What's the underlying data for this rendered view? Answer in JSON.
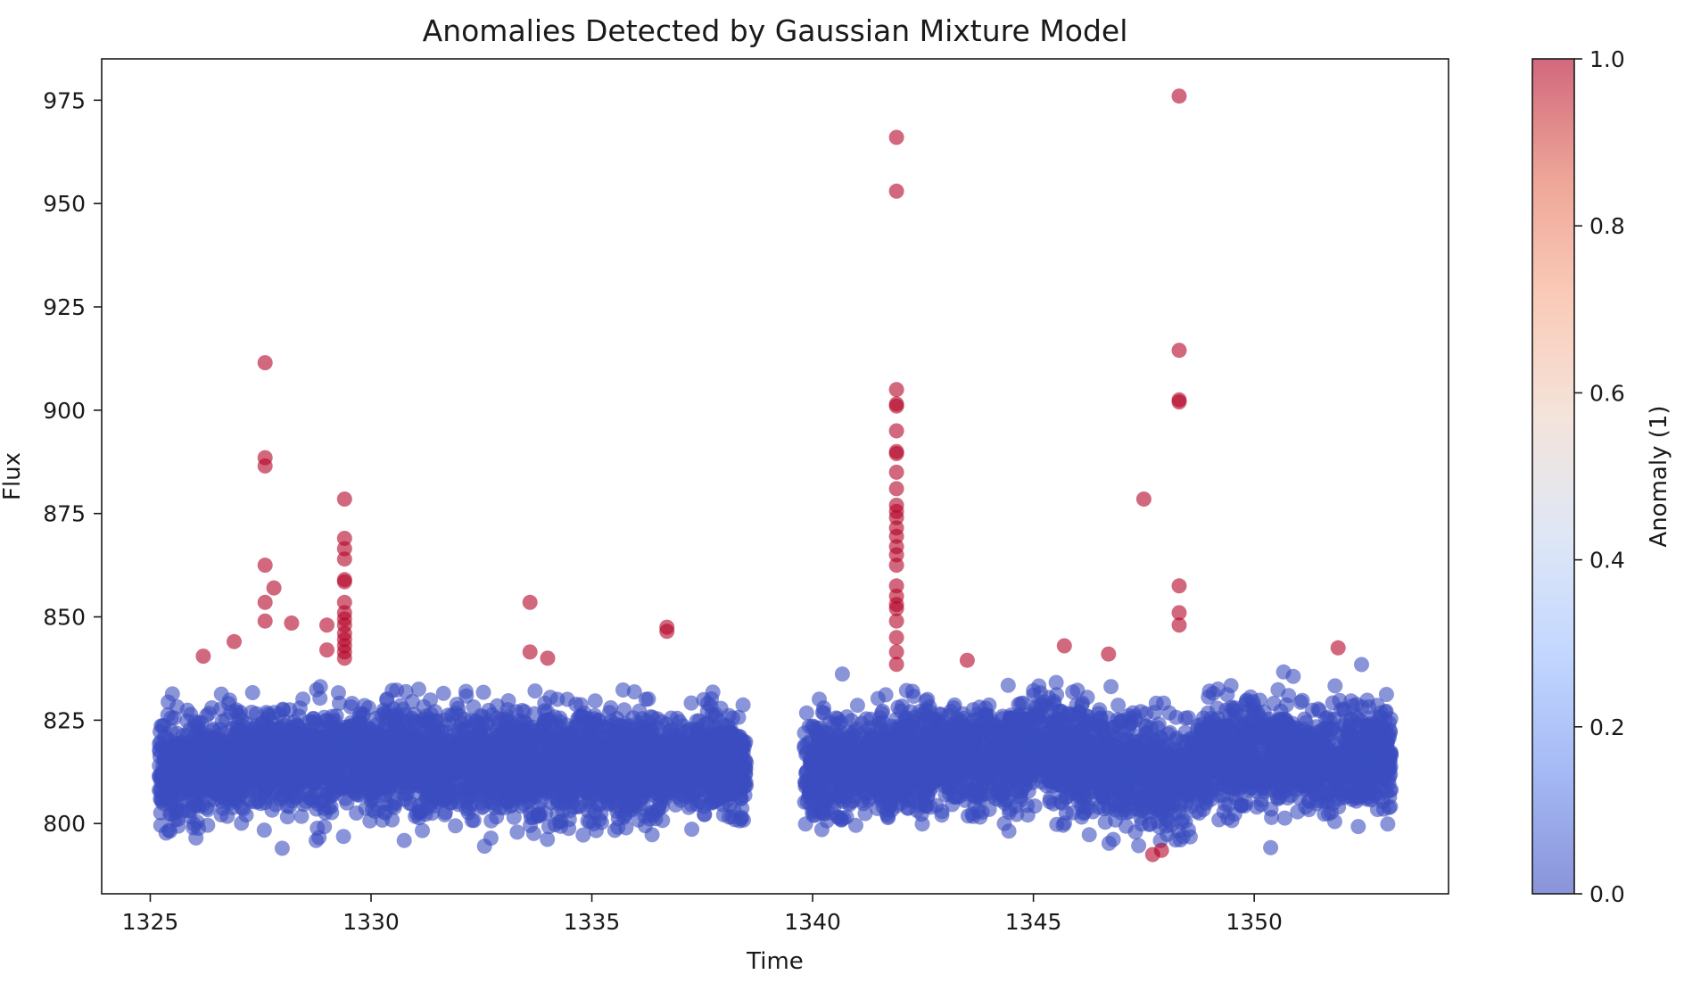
{
  "chart_data": {
    "type": "scatter",
    "title": "Anomalies Detected by Gaussian Mixture Model",
    "xlabel": "Time",
    "ylabel": "Flux",
    "xlim": [
      1323.9,
      1354.4
    ],
    "ylim": [
      783,
      985
    ],
    "xticks": [
      1325,
      1330,
      1335,
      1340,
      1345,
      1350
    ],
    "yticks": [
      800,
      825,
      850,
      875,
      900,
      925,
      950,
      975
    ],
    "grid": false,
    "legend": "none",
    "colorbar": {
      "label": "Anomaly (1)",
      "colormap": "coolwarm",
      "range": [
        0.0,
        1.0
      ],
      "ticks": [
        "0.0",
        "0.2",
        "0.4",
        "0.6",
        "0.8",
        "1.0"
      ],
      "stops": [
        "#3b4cc0",
        "#6889ee",
        "#9abbff",
        "#c9d7f0",
        "#edd1c2",
        "#f7a889",
        "#e26952",
        "#b40426"
      ]
    },
    "colors": {
      "normal": "#3b4cc0",
      "anomaly": "#b40426"
    },
    "marker_alpha": 0.6,
    "normal_band": {
      "segments": [
        {
          "x_start": 1325.2,
          "x_end": 1338.5
        },
        {
          "x_start": 1339.8,
          "x_end": 1353.1
        }
      ],
      "baseline": [
        [
          1325.2,
          812
        ],
        [
          1327.5,
          815
        ],
        [
          1329.5,
          817
        ],
        [
          1332,
          815
        ],
        [
          1335,
          814
        ],
        [
          1338.5,
          815
        ],
        [
          1339.8,
          813
        ],
        [
          1342,
          815
        ],
        [
          1345,
          818
        ],
        [
          1347,
          814
        ],
        [
          1348.3,
          810
        ],
        [
          1349,
          817
        ],
        [
          1351,
          816
        ],
        [
          1353.1,
          815
        ]
      ],
      "approx_min": 794,
      "approx_max": 839
    },
    "anomalies": {
      "label_value": 1,
      "points": [
        [
          1326.2,
          840.5
        ],
        [
          1326.9,
          844.0
        ],
        [
          1327.6,
          911.5
        ],
        [
          1327.6,
          888.5
        ],
        [
          1327.6,
          886.5
        ],
        [
          1327.6,
          862.5
        ],
        [
          1327.6,
          853.5
        ],
        [
          1327.6,
          849.0
        ],
        [
          1327.8,
          857.0
        ],
        [
          1328.2,
          848.5
        ],
        [
          1329.0,
          848.0
        ],
        [
          1329.0,
          842.0
        ],
        [
          1329.4,
          878.5
        ],
        [
          1329.4,
          869.0
        ],
        [
          1329.4,
          866.5
        ],
        [
          1329.4,
          864.0
        ],
        [
          1329.4,
          859.0
        ],
        [
          1329.4,
          858.5
        ],
        [
          1329.4,
          853.5
        ],
        [
          1329.4,
          851.0
        ],
        [
          1329.4,
          849.5
        ],
        [
          1329.4,
          848.0
        ],
        [
          1329.4,
          846.0
        ],
        [
          1329.4,
          844.5
        ],
        [
          1329.4,
          843.0
        ],
        [
          1329.4,
          841.5
        ],
        [
          1329.4,
          840.0
        ],
        [
          1333.6,
          853.5
        ],
        [
          1333.6,
          841.5
        ],
        [
          1334.0,
          840.0
        ],
        [
          1336.7,
          847.5
        ],
        [
          1336.7,
          846.5
        ],
        [
          1341.9,
          966.0
        ],
        [
          1341.9,
          953.0
        ],
        [
          1341.9,
          905.0
        ],
        [
          1341.9,
          901.5
        ],
        [
          1341.9,
          901.0
        ],
        [
          1341.9,
          895.0
        ],
        [
          1341.9,
          890.0
        ],
        [
          1341.9,
          889.5
        ],
        [
          1341.9,
          885.0
        ],
        [
          1341.9,
          881.0
        ],
        [
          1341.9,
          877.0
        ],
        [
          1341.9,
          875.5
        ],
        [
          1341.9,
          874.0
        ],
        [
          1341.9,
          871.5
        ],
        [
          1341.9,
          869.5
        ],
        [
          1341.9,
          867.0
        ],
        [
          1341.9,
          865.0
        ],
        [
          1341.9,
          862.5
        ],
        [
          1341.9,
          857.5
        ],
        [
          1341.9,
          855.0
        ],
        [
          1341.9,
          853.0
        ],
        [
          1341.9,
          852.0
        ],
        [
          1341.9,
          849.0
        ],
        [
          1341.9,
          845.0
        ],
        [
          1341.9,
          841.5
        ],
        [
          1341.9,
          838.5
        ],
        [
          1343.5,
          839.5
        ],
        [
          1345.7,
          843.0
        ],
        [
          1346.7,
          841.0
        ],
        [
          1347.5,
          878.5
        ],
        [
          1347.7,
          792.5
        ],
        [
          1347.9,
          793.5
        ],
        [
          1348.3,
          976.0
        ],
        [
          1348.3,
          914.5
        ],
        [
          1348.3,
          902.5
        ],
        [
          1348.3,
          902.0
        ],
        [
          1348.3,
          857.5
        ],
        [
          1348.3,
          851.0
        ],
        [
          1348.3,
          848.0
        ],
        [
          1351.9,
          842.5
        ]
      ]
    }
  }
}
